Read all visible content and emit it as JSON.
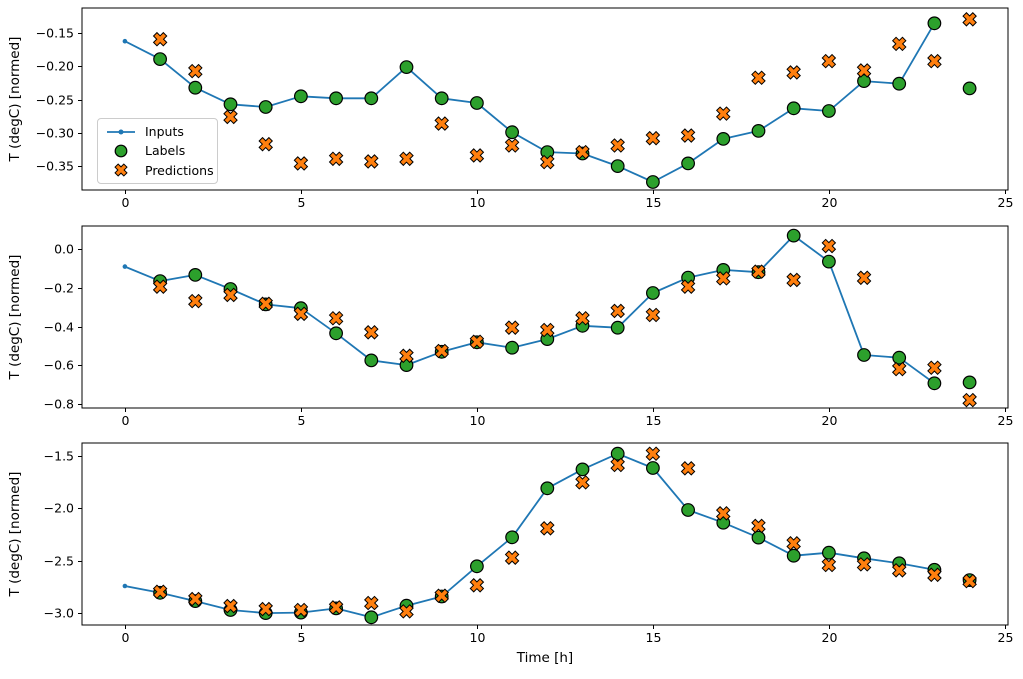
{
  "figure": {
    "background": "#ffffff",
    "xlabel": "Time [h]",
    "x_ticks": [
      0,
      5,
      10,
      15,
      20,
      25
    ],
    "x_tick_labels": [
      "0",
      "5",
      "10",
      "15",
      "20",
      "25"
    ],
    "xlim": [
      -1.22,
      25.09
    ],
    "colors": {
      "inputs": "#1f77b4",
      "labels": "#2ca02c",
      "predictions": "#ff7f0e",
      "marker_edge": "#000000",
      "spine": "#000000",
      "legend_border": "#cccccc"
    },
    "legend": {
      "position": "upper-left-area of first subplot",
      "items": [
        {
          "label": "Inputs",
          "marker": "line-dot",
          "color": "#1f77b4"
        },
        {
          "label": "Labels",
          "marker": "circle",
          "color": "#2ca02c"
        },
        {
          "label": "Predictions",
          "marker": "x",
          "color": "#ff7f0e"
        }
      ]
    }
  },
  "chart_data": [
    {
      "type": "line",
      "title": "",
      "xlabel": "Time [h]",
      "ylabel": "T (degC) [normed]",
      "ylim": [
        -0.386,
        -0.112
      ],
      "grid": false,
      "y_tick_values": [
        -0.15,
        -0.2,
        -0.25,
        -0.3,
        -0.35
      ],
      "y_tick_labels": [
        "−0.15",
        "−0.20",
        "−0.25",
        "−0.30",
        "−0.35"
      ],
      "series": [
        {
          "name": "Inputs",
          "type": "line",
          "color": "#1f77b4",
          "x": [
            0,
            1,
            2,
            3,
            4,
            5,
            6,
            7,
            8,
            9,
            10,
            11,
            12,
            13,
            14,
            15,
            16,
            17,
            18,
            19,
            20,
            21,
            22,
            23
          ],
          "y": [
            -0.162,
            -0.189,
            -0.232,
            -0.257,
            -0.261,
            -0.245,
            -0.248,
            -0.248,
            -0.201,
            -0.248,
            -0.255,
            -0.299,
            -0.329,
            -0.331,
            -0.35,
            -0.374,
            -0.346,
            -0.309,
            -0.297,
            -0.263,
            -0.267,
            -0.222,
            -0.226,
            -0.135
          ]
        },
        {
          "name": "Labels",
          "type": "scatter-circle",
          "color": "#2ca02c",
          "x": [
            1,
            2,
            3,
            4,
            5,
            6,
            7,
            8,
            9,
            10,
            11,
            12,
            13,
            14,
            15,
            16,
            17,
            18,
            19,
            20,
            21,
            22,
            23,
            24
          ],
          "y": [
            -0.189,
            -0.232,
            -0.257,
            -0.261,
            -0.245,
            -0.248,
            -0.248,
            -0.201,
            -0.248,
            -0.255,
            -0.299,
            -0.329,
            -0.331,
            -0.35,
            -0.374,
            -0.346,
            -0.309,
            -0.297,
            -0.263,
            -0.267,
            -0.222,
            -0.226,
            -0.135,
            -0.233
          ]
        },
        {
          "name": "Predictions",
          "type": "scatter-x",
          "color": "#ff7f0e",
          "x": [
            1,
            2,
            3,
            4,
            5,
            6,
            7,
            8,
            9,
            10,
            11,
            12,
            13,
            14,
            15,
            16,
            17,
            18,
            19,
            20,
            21,
            22,
            23,
            24
          ],
          "y": [
            -0.159,
            -0.207,
            -0.276,
            -0.317,
            -0.346,
            -0.339,
            -0.343,
            -0.339,
            -0.286,
            -0.334,
            -0.319,
            -0.344,
            -0.329,
            -0.319,
            -0.308,
            -0.304,
            -0.271,
            -0.217,
            -0.209,
            -0.192,
            -0.206,
            -0.166,
            -0.192,
            -0.129
          ]
        }
      ]
    },
    {
      "type": "line",
      "title": "",
      "xlabel": "Time [h]",
      "ylabel": "T (degC) [normed]",
      "ylim": [
        -0.823,
        0.122
      ],
      "grid": false,
      "y_tick_values": [
        0.0,
        -0.2,
        -0.4,
        -0.6,
        -0.8
      ],
      "y_tick_labels": [
        "0.0",
        "−0.2",
        "−0.4",
        "−0.6",
        "−0.8"
      ],
      "series": [
        {
          "name": "Inputs",
          "type": "line",
          "color": "#1f77b4",
          "x": [
            0,
            1,
            2,
            3,
            4,
            5,
            6,
            7,
            8,
            9,
            10,
            11,
            12,
            13,
            14,
            15,
            16,
            17,
            18,
            19,
            20,
            21,
            22,
            23
          ],
          "y": [
            -0.089,
            -0.164,
            -0.132,
            -0.205,
            -0.285,
            -0.305,
            -0.435,
            -0.576,
            -0.6,
            -0.531,
            -0.482,
            -0.51,
            -0.465,
            -0.396,
            -0.406,
            -0.226,
            -0.146,
            -0.106,
            -0.118,
            0.072,
            -0.063,
            -0.548,
            -0.562,
            -0.695
          ]
        },
        {
          "name": "Labels",
          "type": "scatter-circle",
          "color": "#2ca02c",
          "x": [
            1,
            2,
            3,
            4,
            5,
            6,
            7,
            8,
            9,
            10,
            11,
            12,
            13,
            14,
            15,
            16,
            17,
            18,
            19,
            20,
            21,
            22,
            23,
            24
          ],
          "y": [
            -0.164,
            -0.132,
            -0.205,
            -0.285,
            -0.305,
            -0.435,
            -0.576,
            -0.6,
            -0.531,
            -0.482,
            -0.51,
            -0.465,
            -0.396,
            -0.406,
            -0.226,
            -0.146,
            -0.106,
            -0.118,
            0.072,
            -0.063,
            -0.548,
            -0.562,
            -0.695,
            -0.69
          ]
        },
        {
          "name": "Predictions",
          "type": "scatter-x",
          "color": "#ff7f0e",
          "x": [
            1,
            2,
            3,
            4,
            5,
            6,
            7,
            8,
            9,
            10,
            11,
            12,
            13,
            14,
            15,
            16,
            17,
            18,
            19,
            20,
            21,
            22,
            23,
            24
          ],
          "y": [
            -0.193,
            -0.268,
            -0.236,
            -0.282,
            -0.334,
            -0.357,
            -0.43,
            -0.552,
            -0.527,
            -0.479,
            -0.406,
            -0.418,
            -0.357,
            -0.319,
            -0.34,
            -0.193,
            -0.15,
            -0.115,
            -0.158,
            0.018,
            -0.147,
            -0.621,
            -0.614,
            -0.782
          ]
        }
      ]
    },
    {
      "type": "line",
      "title": "",
      "xlabel": "Time [h]",
      "ylabel": "T (degC) [normed]",
      "ylim": [
        -3.119,
        -1.372
      ],
      "grid": false,
      "y_tick_values": [
        -1.5,
        -2.0,
        -2.5,
        -3.0
      ],
      "y_tick_labels": [
        "−1.5",
        "−2.0",
        "−2.5",
        "−3.0"
      ],
      "series": [
        {
          "name": "Inputs",
          "type": "line",
          "color": "#1f77b4",
          "x": [
            0,
            1,
            2,
            3,
            4,
            5,
            6,
            7,
            8,
            9,
            10,
            11,
            12,
            13,
            14,
            15,
            16,
            17,
            18,
            19,
            20,
            21,
            22,
            23
          ],
          "y": [
            -2.745,
            -2.81,
            -2.89,
            -2.975,
            -3.005,
            -3.0,
            -2.96,
            -3.045,
            -2.934,
            -2.845,
            -2.556,
            -2.277,
            -1.807,
            -1.625,
            -1.475,
            -1.612,
            -2.015,
            -2.137,
            -2.28,
            -2.454,
            -2.425,
            -2.479,
            -2.527,
            -2.589
          ]
        },
        {
          "name": "Labels",
          "type": "scatter-circle",
          "color": "#2ca02c",
          "x": [
            1,
            2,
            3,
            4,
            5,
            6,
            7,
            8,
            9,
            10,
            11,
            12,
            13,
            14,
            15,
            16,
            17,
            18,
            19,
            20,
            21,
            22,
            23,
            24
          ],
          "y": [
            -2.81,
            -2.89,
            -2.975,
            -3.005,
            -3.0,
            -2.96,
            -3.045,
            -2.934,
            -2.845,
            -2.556,
            -2.277,
            -1.807,
            -1.625,
            -1.475,
            -1.612,
            -2.015,
            -2.137,
            -2.28,
            -2.454,
            -2.425,
            -2.479,
            -2.527,
            -2.589,
            -2.688
          ]
        },
        {
          "name": "Predictions",
          "type": "scatter-x",
          "color": "#ff7f0e",
          "x": [
            1,
            2,
            3,
            4,
            5,
            6,
            7,
            8,
            9,
            10,
            11,
            12,
            13,
            14,
            15,
            16,
            17,
            18,
            19,
            20,
            21,
            22,
            23,
            24
          ],
          "y": [
            -2.8,
            -2.87,
            -2.937,
            -2.966,
            -2.975,
            -2.95,
            -2.908,
            -2.988,
            -2.838,
            -2.738,
            -2.473,
            -2.191,
            -1.75,
            -1.583,
            -1.475,
            -1.615,
            -2.047,
            -2.168,
            -2.335,
            -2.543,
            -2.537,
            -2.594,
            -2.637,
            -2.698
          ]
        }
      ]
    }
  ]
}
